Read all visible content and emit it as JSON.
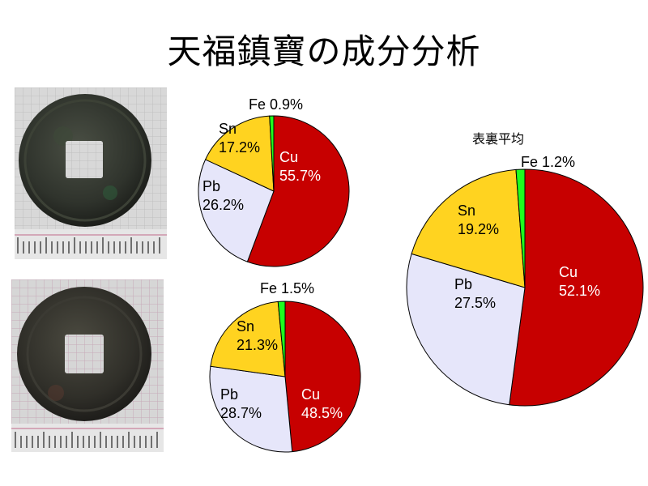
{
  "title": "天福鎮寶の成分分析",
  "average_label": "表裏平均",
  "colors": {
    "Cu": "#c70000",
    "Pb": "#e6e6fa",
    "Sn": "#ffd320",
    "Fe": "#1eff1e",
    "outline": "#000000",
    "label_light": "#ffffff",
    "label_dark": "#000000"
  },
  "photos": [
    {
      "name": "coin-photo-obverse",
      "icon": "coin-obverse-photo"
    },
    {
      "name": "coin-photo-reverse",
      "icon": "coin-reverse-photo"
    }
  ],
  "chart_data": [
    {
      "type": "pie",
      "name": "obverse",
      "slices": [
        {
          "label": "Cu",
          "value": 55.7,
          "value_text": "55.7%"
        },
        {
          "label": "Pb",
          "value": 26.2,
          "value_text": "26.2%"
        },
        {
          "label": "Sn",
          "value": 17.2,
          "value_text": "17.2%"
        },
        {
          "label": "Fe",
          "value": 0.9,
          "value_text": "0.9%"
        }
      ],
      "start": "12 o'clock",
      "direction": "clockwise"
    },
    {
      "type": "pie",
      "name": "reverse",
      "slices": [
        {
          "label": "Cu",
          "value": 48.5,
          "value_text": "48.5%"
        },
        {
          "label": "Pb",
          "value": 28.7,
          "value_text": "28.7%"
        },
        {
          "label": "Sn",
          "value": 21.3,
          "value_text": "21.3%"
        },
        {
          "label": "Fe",
          "value": 1.5,
          "value_text": "1.5%"
        }
      ],
      "start": "12 o'clock",
      "direction": "clockwise"
    },
    {
      "type": "pie",
      "name": "average",
      "slices": [
        {
          "label": "Cu",
          "value": 52.1,
          "value_text": "52.1%"
        },
        {
          "label": "Pb",
          "value": 27.5,
          "value_text": "27.5%"
        },
        {
          "label": "Sn",
          "value": 19.2,
          "value_text": "19.2%"
        },
        {
          "label": "Fe",
          "value": 1.2,
          "value_text": "1.2%"
        }
      ],
      "start": "12 o'clock",
      "direction": "clockwise"
    }
  ]
}
